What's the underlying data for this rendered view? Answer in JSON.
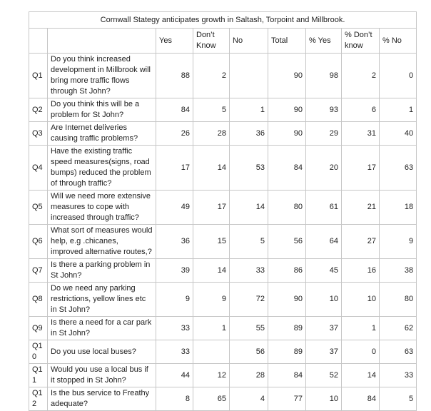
{
  "table": {
    "title": "Cornwall Stategy anticipates growth in Saltash, Torpoint and Millbrook.",
    "headers": {
      "row_label": "",
      "question": "",
      "yes": "Yes",
      "dont_know": "Don’t Know",
      "no": "No",
      "total": "Total",
      "pct_yes": "% Yes",
      "pct_dont_know": "% Don’t know",
      "pct_no": "% No"
    },
    "rows": [
      {
        "id": "Q1",
        "question": "Do you think increased development in Millbrook will bring more traffic flows through St John?",
        "yes": "88",
        "dont_know": "2",
        "no": "",
        "total": "90",
        "pct_yes": "98",
        "pct_dont_know": "2",
        "pct_no": "0"
      },
      {
        "id": "Q2",
        "question": "Do you think this will be a problem for St John?",
        "yes": "84",
        "dont_know": "5",
        "no": "1",
        "total": "90",
        "pct_yes": "93",
        "pct_dont_know": "6",
        "pct_no": "1"
      },
      {
        "id": "Q3",
        "question": "Are Internet deliveries causing traffic problems?",
        "yes": "26",
        "dont_know": "28",
        "no": "36",
        "total": "90",
        "pct_yes": "29",
        "pct_dont_know": "31",
        "pct_no": "40"
      },
      {
        "id": "Q4",
        "question": "Have the existing traffic speed measures(signs, road bumps) reduced the problem of through traffic?",
        "yes": "17",
        "dont_know": "14",
        "no": "53",
        "total": "84",
        "pct_yes": "20",
        "pct_dont_know": "17",
        "pct_no": "63"
      },
      {
        "id": "Q5",
        "question": "Will we need more extensive measures to cope with increased through traffic?",
        "yes": "49",
        "dont_know": "17",
        "no": "14",
        "total": "80",
        "pct_yes": "61",
        "pct_dont_know": "21",
        "pct_no": "18"
      },
      {
        "id": "Q6",
        "question": "What sort of measures would help, e.g .chicanes, improved alternative routes,?",
        "yes": "36",
        "dont_know": "15",
        "no": "5",
        "total": "56",
        "pct_yes": "64",
        "pct_dont_know": "27",
        "pct_no": "9"
      },
      {
        "id": "Q7",
        "question": "Is there a parking problem in St John?",
        "yes": "39",
        "dont_know": "14",
        "no": "33",
        "total": "86",
        "pct_yes": "45",
        "pct_dont_know": "16",
        "pct_no": "38"
      },
      {
        "id": "Q8",
        "question": "Do we need any parking restrictions, yellow lines etc in St John?",
        "yes": "9",
        "dont_know": "9",
        "no": "72",
        "total": "90",
        "pct_yes": "10",
        "pct_dont_know": "10",
        "pct_no": "80"
      },
      {
        "id": "Q9",
        "question": "Is there a need for a car park in St John?",
        "yes": "33",
        "dont_know": "1",
        "no": "55",
        "total": "89",
        "pct_yes": "37",
        "pct_dont_know": "1",
        "pct_no": "62"
      },
      {
        "id": "Q10",
        "question": "Do you use local buses?",
        "yes": "33",
        "dont_know": "",
        "no": "56",
        "total": "89",
        "pct_yes": "37",
        "pct_dont_know": "0",
        "pct_no": "63"
      },
      {
        "id": "Q11",
        "question": "Would you use a local bus if it stopped in St John?",
        "yes": "44",
        "dont_know": "12",
        "no": "28",
        "total": "84",
        "pct_yes": "52",
        "pct_dont_know": "14",
        "pct_no": "33"
      },
      {
        "id": "Q12",
        "question": "Is the bus service to Freathy adequate?",
        "yes": "8",
        "dont_know": "65",
        "no": "4",
        "total": "77",
        "pct_yes": "10",
        "pct_dont_know": "84",
        "pct_no": "5"
      }
    ]
  }
}
